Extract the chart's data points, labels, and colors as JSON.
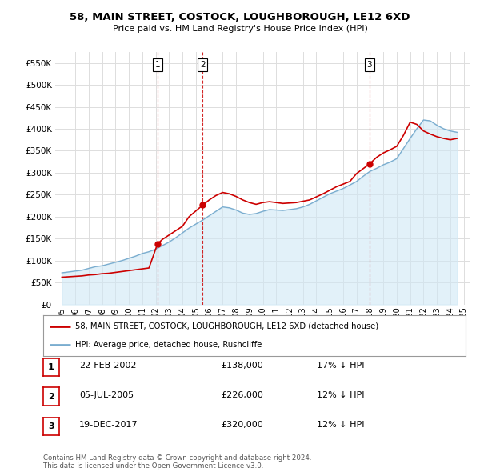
{
  "title": "58, MAIN STREET, COSTOCK, LOUGHBOROUGH, LE12 6XD",
  "subtitle": "Price paid vs. HM Land Registry's House Price Index (HPI)",
  "sale_dates": [
    2002.14,
    2005.51,
    2017.97
  ],
  "sale_prices": [
    138000,
    226000,
    320000
  ],
  "sale_labels": [
    "1",
    "2",
    "3"
  ],
  "hpi_years": [
    1995.0,
    1995.5,
    1996.0,
    1996.5,
    1997.0,
    1997.5,
    1998.0,
    1998.5,
    1999.0,
    1999.5,
    2000.0,
    2000.5,
    2001.0,
    2001.5,
    2002.0,
    2002.5,
    2003.0,
    2003.5,
    2004.0,
    2004.5,
    2005.0,
    2005.5,
    2006.0,
    2006.5,
    2007.0,
    2007.5,
    2008.0,
    2008.5,
    2009.0,
    2009.5,
    2010.0,
    2010.5,
    2011.0,
    2011.5,
    2012.0,
    2012.5,
    2013.0,
    2013.5,
    2014.0,
    2014.5,
    2015.0,
    2015.5,
    2016.0,
    2016.5,
    2017.0,
    2017.5,
    2018.0,
    2018.5,
    2019.0,
    2019.5,
    2020.0,
    2020.5,
    2021.0,
    2021.5,
    2022.0,
    2022.5,
    2023.0,
    2023.5,
    2024.0,
    2024.5
  ],
  "hpi_values": [
    72000,
    74000,
    76000,
    78000,
    82000,
    86000,
    88000,
    92000,
    96000,
    100000,
    105000,
    110000,
    116000,
    120000,
    126000,
    134000,
    142000,
    152000,
    163000,
    174000,
    183000,
    192000,
    202000,
    212000,
    222000,
    220000,
    215000,
    208000,
    205000,
    207000,
    212000,
    216000,
    215000,
    214000,
    216000,
    218000,
    222000,
    228000,
    236000,
    244000,
    252000,
    258000,
    264000,
    272000,
    280000,
    292000,
    303000,
    310000,
    318000,
    324000,
    332000,
    355000,
    378000,
    400000,
    420000,
    418000,
    408000,
    400000,
    395000,
    392000
  ],
  "price_years": [
    1995.0,
    1995.5,
    1996.0,
    1996.5,
    1997.0,
    1997.5,
    1998.0,
    1998.5,
    1999.0,
    1999.5,
    2000.0,
    2000.5,
    2001.0,
    2001.5,
    2002.14,
    2002.5,
    2003.0,
    2003.5,
    2004.0,
    2004.5,
    2005.51,
    2006.0,
    2006.5,
    2007.0,
    2007.5,
    2008.0,
    2008.5,
    2009.0,
    2009.5,
    2010.0,
    2010.5,
    2011.0,
    2011.5,
    2012.0,
    2012.5,
    2013.0,
    2013.5,
    2014.0,
    2014.5,
    2015.0,
    2015.5,
    2016.0,
    2016.5,
    2017.0,
    2017.97,
    2018.5,
    2019.0,
    2019.5,
    2020.0,
    2020.5,
    2021.0,
    2021.5,
    2022.0,
    2022.5,
    2023.0,
    2023.5,
    2024.0,
    2024.5
  ],
  "price_values": [
    62000,
    63000,
    64000,
    65000,
    67000,
    68000,
    70000,
    71000,
    73000,
    75000,
    77000,
    79000,
    81000,
    83000,
    138000,
    148000,
    158000,
    168000,
    178000,
    200000,
    226000,
    238000,
    248000,
    255000,
    252000,
    246000,
    238000,
    232000,
    228000,
    232000,
    234000,
    232000,
    230000,
    231000,
    232000,
    235000,
    238000,
    245000,
    252000,
    260000,
    268000,
    274000,
    280000,
    298000,
    320000,
    335000,
    345000,
    352000,
    360000,
    385000,
    415000,
    410000,
    395000,
    388000,
    382000,
    378000,
    375000,
    378000
  ],
  "red_color": "#cc0000",
  "blue_color": "#7aadcf",
  "blue_fill": "#d0e8f5",
  "bg_color": "#ffffff",
  "grid_color": "#dddddd",
  "ylim": [
    0,
    575000
  ],
  "xlim": [
    1994.5,
    2025.5
  ],
  "yticks": [
    0,
    50000,
    100000,
    150000,
    200000,
    250000,
    300000,
    350000,
    400000,
    450000,
    500000,
    550000
  ],
  "xticks": [
    1995,
    1996,
    1997,
    1998,
    1999,
    2000,
    2001,
    2002,
    2003,
    2004,
    2005,
    2006,
    2007,
    2008,
    2009,
    2010,
    2011,
    2012,
    2013,
    2014,
    2015,
    2016,
    2017,
    2018,
    2019,
    2020,
    2021,
    2022,
    2023,
    2024,
    2025
  ],
  "legend_label_red": "58, MAIN STREET, COSTOCK, LOUGHBOROUGH, LE12 6XD (detached house)",
  "legend_label_blue": "HPI: Average price, detached house, Rushcliffe",
  "table_data": [
    [
      "1",
      "22-FEB-2002",
      "£138,000",
      "17% ↓ HPI"
    ],
    [
      "2",
      "05-JUL-2005",
      "£226,000",
      "12% ↓ HPI"
    ],
    [
      "3",
      "19-DEC-2017",
      "£320,000",
      "12% ↓ HPI"
    ]
  ],
  "footnote": "Contains HM Land Registry data © Crown copyright and database right 2024.\nThis data is licensed under the Open Government Licence v3.0."
}
